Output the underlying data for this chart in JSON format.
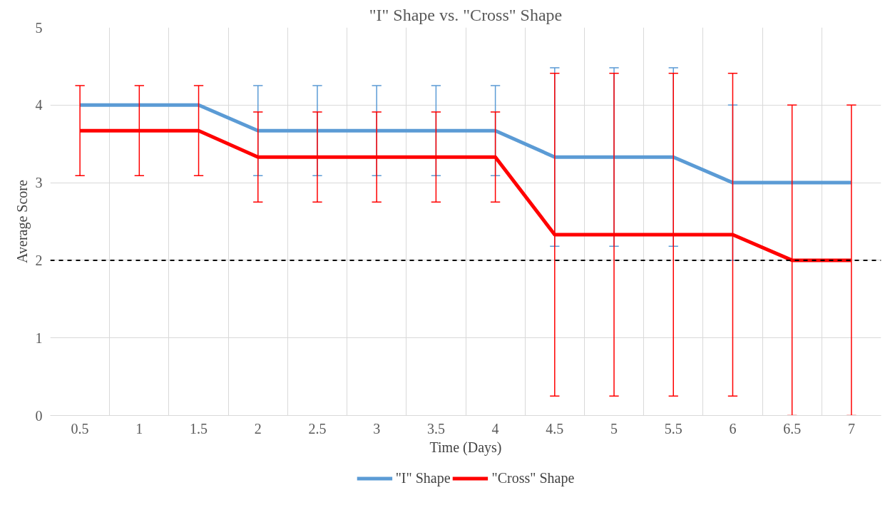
{
  "chart_data": {
    "type": "line",
    "title": "\"I\" Shape vs. \"Cross\" Shape",
    "xlabel": "Time (Days)",
    "ylabel": "Average Score",
    "categories": [
      "0.5",
      "1",
      "1.5",
      "2",
      "2.5",
      "3",
      "3.5",
      "4",
      "4.5",
      "5",
      "5.5",
      "6",
      "6.5",
      "7"
    ],
    "series": [
      {
        "name": "\"I\" Shape",
        "color": "#5b9bd5",
        "values": [
          4,
          4,
          4,
          3.67,
          3.67,
          3.67,
          3.67,
          3.67,
          3.33,
          3.33,
          3.33,
          3,
          3,
          3
        ],
        "errors": [
          null,
          null,
          null,
          0.58,
          0.58,
          0.58,
          0.58,
          0.58,
          1.15,
          1.15,
          1.15,
          1,
          null,
          null
        ]
      },
      {
        "name": "\"Cross\" Shape",
        "color": "#ff0000",
        "values": [
          3.67,
          3.67,
          3.67,
          3.33,
          3.33,
          3.33,
          3.33,
          3.33,
          2.33,
          2.33,
          2.33,
          2.33,
          2,
          2
        ],
        "errors": [
          0.58,
          0.58,
          0.58,
          0.58,
          0.58,
          0.58,
          0.58,
          0.58,
          2.08,
          2.08,
          2.08,
          2.08,
          2,
          2
        ]
      }
    ],
    "ylim": [
      0,
      5
    ],
    "yticks": [
      0,
      1,
      2,
      3,
      4,
      5
    ],
    "grid": true,
    "legend": "bottom",
    "line_style": "solid",
    "ref_lines": [
      {
        "axis": "y",
        "value": 2,
        "label": null,
        "color": "#000000",
        "line_style": "dashed"
      }
    ]
  }
}
